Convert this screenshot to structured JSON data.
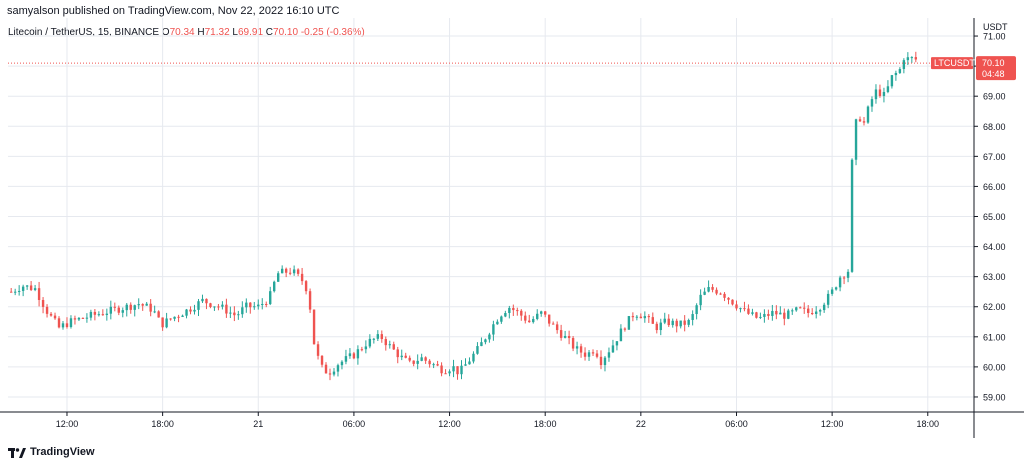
{
  "header": {
    "published": "samyalson published on TradingView.com, Nov 22, 2022 16:10 UTC"
  },
  "legend": {
    "symbol": "Litecoin / TetherUS, 15, BINANCE",
    "o_label": "O",
    "o_value": "70.34",
    "h_label": "H",
    "h_value": "71.32",
    "l_label": "L",
    "l_value": "69.91",
    "c_label": "C",
    "c_value": "70.10",
    "change": "-0.25 (-0.36%)"
  },
  "price_tag": {
    "symbol": "LTCUSDT",
    "price": "70.10",
    "countdown": "04:48"
  },
  "footer": {
    "brand": "TradingView"
  },
  "colors": {
    "up": "#26a69a",
    "down": "#ef5350",
    "grid": "#e6e9ef",
    "axis": "#131722"
  },
  "chart_data": {
    "type": "candlestick",
    "symbol": "LTCUSDT",
    "interval": "15",
    "exchange": "BINANCE",
    "currency": "USDT",
    "yaxis_label": "USDT",
    "ylim": [
      58.5,
      71.6
    ],
    "y_ticks": [
      "71.00",
      "70.00",
      "69.00",
      "68.00",
      "67.00",
      "66.00",
      "65.00",
      "64.00",
      "63.00",
      "62.00",
      "61.00",
      "60.00",
      "59.00"
    ],
    "x_ticks": [
      {
        "label": "12:00",
        "hour": 12
      },
      {
        "label": "18:00",
        "hour": 18
      },
      {
        "label": "21",
        "hour": 24
      },
      {
        "label": "06:00",
        "hour": 30
      },
      {
        "label": "12:00",
        "hour": 36
      },
      {
        "label": "18:00",
        "hour": 42
      },
      {
        "label": "22",
        "hour": 48
      },
      {
        "label": "06:00",
        "hour": 54
      },
      {
        "label": "12:00",
        "hour": 60
      },
      {
        "label": "18:00",
        "hour": 66
      }
    ],
    "xlim_hours": [
      8.3,
      68.9
    ],
    "last_price": 70.1,
    "close_path": [
      [
        8.5,
        62.5
      ],
      [
        9.2,
        62.7
      ],
      [
        10.0,
        62.6
      ],
      [
        10.3,
        62.3
      ],
      [
        10.8,
        61.8
      ],
      [
        11.5,
        61.3
      ],
      [
        12.2,
        61.5
      ],
      [
        13.5,
        61.7
      ],
      [
        15.0,
        61.9
      ],
      [
        16.5,
        62.1
      ],
      [
        17.4,
        61.9
      ],
      [
        17.9,
        61.4
      ],
      [
        18.5,
        61.6
      ],
      [
        19.6,
        61.9
      ],
      [
        20.5,
        62.2
      ],
      [
        21.6,
        62.0
      ],
      [
        22.6,
        61.7
      ],
      [
        23.2,
        62.0
      ],
      [
        24.0,
        62.0
      ],
      [
        24.7,
        62.3
      ],
      [
        25.2,
        63.1
      ],
      [
        26.1,
        63.2
      ],
      [
        26.9,
        62.8
      ],
      [
        27.2,
        62.3
      ],
      [
        27.4,
        61.0
      ],
      [
        27.9,
        60.0
      ],
      [
        28.4,
        59.8
      ],
      [
        29.0,
        60.1
      ],
      [
        30.0,
        60.4
      ],
      [
        30.8,
        60.8
      ],
      [
        31.2,
        60.9
      ],
      [
        31.7,
        61.0
      ],
      [
        32.4,
        60.6
      ],
      [
        33.0,
        60.3
      ],
      [
        33.5,
        60.1
      ],
      [
        34.2,
        60.3
      ],
      [
        34.9,
        60.1
      ],
      [
        35.6,
        59.9
      ],
      [
        36.2,
        60.0
      ],
      [
        36.6,
        59.8
      ],
      [
        37.2,
        60.2
      ],
      [
        37.8,
        60.6
      ],
      [
        38.5,
        61.2
      ],
      [
        39.1,
        61.7
      ],
      [
        39.7,
        62.0
      ],
      [
        40.3,
        61.8
      ],
      [
        41.0,
        61.5
      ],
      [
        41.8,
        61.8
      ],
      [
        42.4,
        61.4
      ],
      [
        43.2,
        61.0
      ],
      [
        43.9,
        60.6
      ],
      [
        44.6,
        60.4
      ],
      [
        45.1,
        60.6
      ],
      [
        45.5,
        60.2
      ],
      [
        46.2,
        60.7
      ],
      [
        46.9,
        61.3
      ],
      [
        47.6,
        61.8
      ],
      [
        48.2,
        61.7
      ],
      [
        48.9,
        61.3
      ],
      [
        49.6,
        61.5
      ],
      [
        50.4,
        61.4
      ],
      [
        51.1,
        61.5
      ],
      [
        51.7,
        62.3
      ],
      [
        52.3,
        62.6
      ],
      [
        53.0,
        62.5
      ],
      [
        53.9,
        62.1
      ],
      [
        54.6,
        61.8
      ],
      [
        55.4,
        61.6
      ],
      [
        56.3,
        61.8
      ],
      [
        57.1,
        61.7
      ],
      [
        57.9,
        61.9
      ],
      [
        58.5,
        61.8
      ],
      [
        59.2,
        62.0
      ],
      [
        59.9,
        62.4
      ],
      [
        60.5,
        63.0
      ],
      [
        61.0,
        63.2
      ],
      [
        61.3,
        67.5
      ],
      [
        61.6,
        68.4
      ],
      [
        62.0,
        68.1
      ],
      [
        62.4,
        68.8
      ],
      [
        62.8,
        69.2
      ],
      [
        63.3,
        69.0
      ],
      [
        63.8,
        69.7
      ],
      [
        64.2,
        69.8
      ],
      [
        64.5,
        70.3
      ],
      [
        64.9,
        70.2
      ],
      [
        65.2,
        70.34
      ],
      [
        65.3,
        70.1
      ]
    ]
  }
}
